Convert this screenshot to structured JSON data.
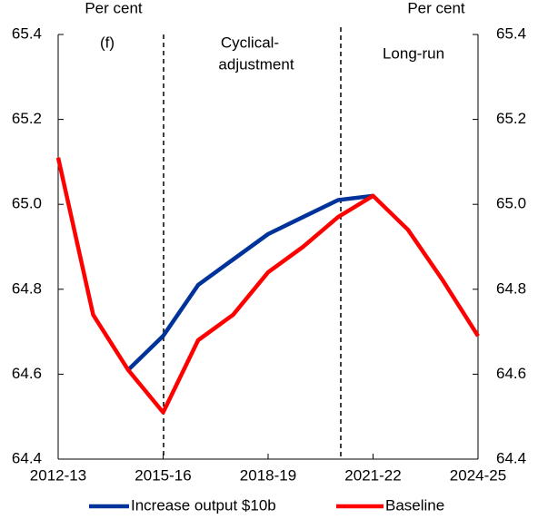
{
  "chart_data": {
    "type": "line",
    "left_axis_label": "Per cent",
    "right_axis_label": "Per cent",
    "annotations": [
      "(f)",
      "Cyclical-",
      "adjustment",
      "Long-run"
    ],
    "categories": [
      "2012-13",
      null,
      null,
      "2015-16",
      null,
      null,
      "2018-19",
      null,
      null,
      "2021-22",
      null,
      null,
      "2024-25"
    ],
    "series": [
      {
        "name": "Increase output $10b",
        "color": "#003399",
        "values": [
          null,
          null,
          64.61,
          64.69,
          64.81,
          64.87,
          64.93,
          64.97,
          65.01,
          65.02,
          null,
          null,
          null
        ]
      },
      {
        "name": "Baseline",
        "color": "#ff0000",
        "values": [
          65.11,
          64.74,
          64.61,
          64.51,
          64.68,
          64.74,
          64.84,
          64.9,
          64.97,
          65.02,
          64.94,
          64.82,
          64.69
        ]
      }
    ],
    "ylim": [
      64.4,
      65.4
    ],
    "yticks": [
      64.4,
      64.6,
      64.8,
      {
        "value": 65.0,
        "label": "65.0"
      },
      65.2,
      65.4
    ],
    "y2lim": [
      64.4,
      65.4
    ],
    "y2ticks": [
      64.4,
      64.6,
      64.8,
      {
        "value": 65.0,
        "label": "65.0"
      },
      65.2,
      65.4
    ],
    "legend": "bottom"
  }
}
